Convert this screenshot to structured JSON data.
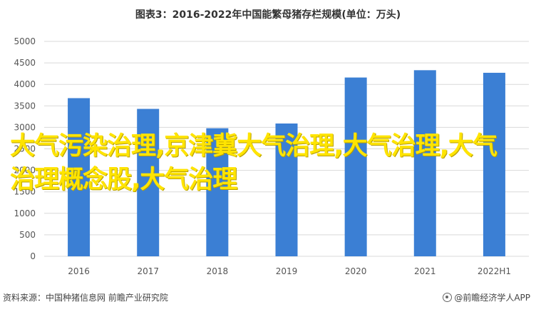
{
  "chart_data": {
    "type": "bar",
    "title": "图表3：2016-2022年中国能繁母猪存栏规模(单位：万头)",
    "categories": [
      "2016",
      "2017",
      "2018",
      "2019",
      "2020",
      "2021",
      "2022H1"
    ],
    "values": [
      3680,
      3430,
      2980,
      3090,
      4160,
      4330,
      4270
    ],
    "ylim": [
      0,
      5000
    ],
    "yticks": [
      0,
      500,
      1000,
      1500,
      2000,
      2500,
      3000,
      3500,
      4000,
      4500,
      5000
    ],
    "xlabel": "",
    "ylabel": "",
    "grid": true,
    "bar_color": "#3b7fd4"
  },
  "overlay_text": "大气污染治理,京津冀大气治理,大气治理,大气治理概念股,大气治理",
  "footer": {
    "source": "资料来源：中国种猪信息网 前瞻产业研究院",
    "credit": "@前瞻经济学人APP",
    "credit_icon": "prospective-logo-icon"
  }
}
